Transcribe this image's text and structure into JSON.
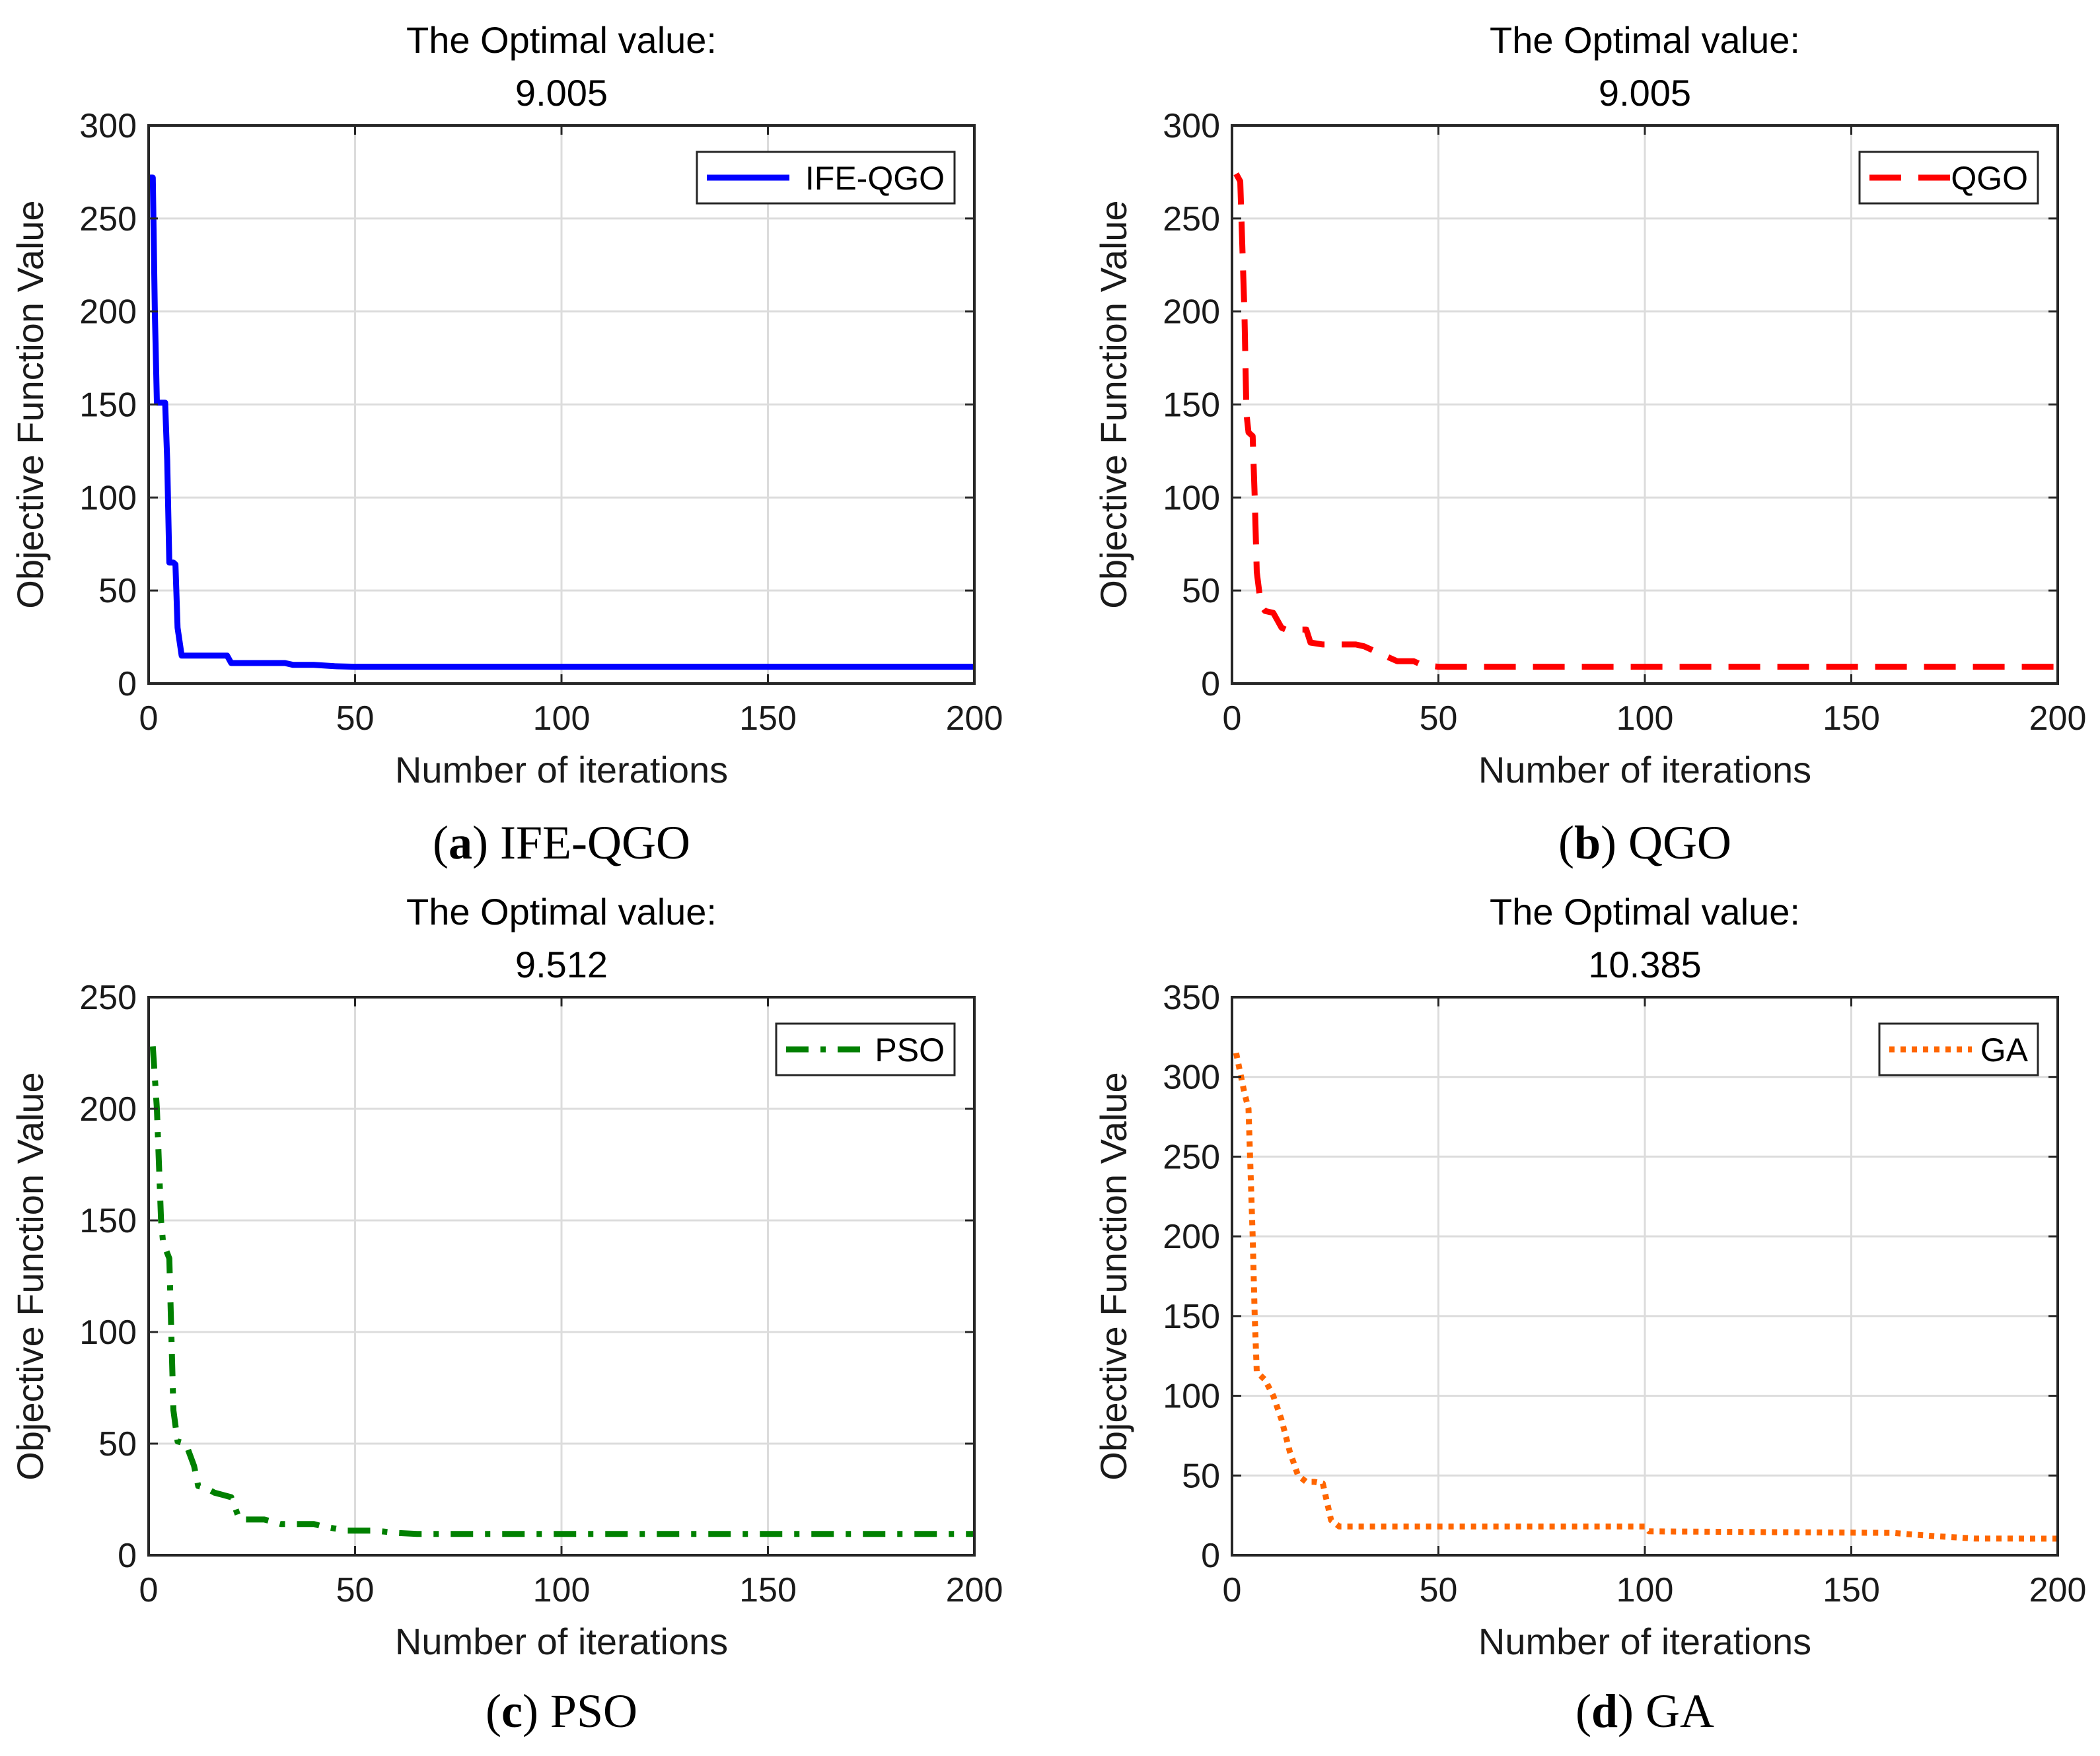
{
  "chart_data": [
    {
      "id": "a",
      "type": "line",
      "title_line1": "The Optimal value:",
      "title_line2": "9.005",
      "xlabel": "Number of iterations",
      "ylabel": "Objective Function Value",
      "xlim": [
        0,
        200
      ],
      "ylim": [
        0,
        300
      ],
      "xticks": [
        0,
        50,
        100,
        150,
        200
      ],
      "yticks": [
        0,
        50,
        100,
        150,
        200,
        250,
        300
      ],
      "grid": true,
      "legend_position": "top-right",
      "caption_letter": "a",
      "caption_name": "IFE-QGO",
      "series": [
        {
          "name": "IFE-QGO",
          "color": "#0000ff",
          "linestyle": "solid",
          "x": [
            0,
            1,
            1.5,
            2,
            4,
            4.5,
            5,
            6,
            6.5,
            7,
            8,
            19,
            20,
            33,
            35,
            40,
            45,
            50,
            200
          ],
          "y": [
            272,
            272,
            200,
            151,
            151,
            120,
            65,
            65,
            64,
            30,
            15,
            15,
            11,
            11,
            10,
            10,
            9.3,
            9.005,
            9.005
          ]
        }
      ]
    },
    {
      "id": "b",
      "type": "line",
      "title_line1": "The Optimal value:",
      "title_line2": "9.005",
      "xlabel": "Number of iterations",
      "ylabel": "Objective Function Value",
      "xlim": [
        0,
        200
      ],
      "ylim": [
        0,
        300
      ],
      "xticks": [
        0,
        50,
        100,
        150,
        200
      ],
      "yticks": [
        0,
        50,
        100,
        150,
        200,
        250,
        300
      ],
      "grid": true,
      "legend_position": "top-right",
      "caption_letter": "b",
      "caption_name": "QGO",
      "series": [
        {
          "name": "QGO",
          "color": "#ff0000",
          "linestyle": "dashed",
          "x": [
            1,
            2,
            3,
            3.5,
            4,
            5,
            5.5,
            6,
            7,
            8,
            10,
            12,
            13,
            18,
            19,
            22,
            30,
            32,
            38,
            40,
            44,
            46,
            50,
            200
          ],
          "y": [
            274,
            270,
            200,
            145,
            135,
            133,
            100,
            60,
            42,
            39,
            38,
            30,
            29,
            29,
            22,
            21,
            21,
            20,
            14,
            12,
            12,
            10,
            9.005,
            9.005
          ]
        }
      ]
    },
    {
      "id": "c",
      "type": "line",
      "title_line1": "The Optimal value:",
      "title_line2": "9.512",
      "xlabel": "Number of iterations",
      "ylabel": "Objective Function Value",
      "xlim": [
        0,
        200
      ],
      "ylim": [
        0,
        250
      ],
      "xticks": [
        0,
        50,
        100,
        150,
        200
      ],
      "yticks": [
        0,
        50,
        100,
        150,
        200,
        250
      ],
      "grid": true,
      "legend_position": "top-right",
      "caption_letter": "c",
      "caption_name": "PSO",
      "series": [
        {
          "name": "PSO",
          "color": "#008000",
          "linestyle": "dashdot",
          "x": [
            1,
            2,
            3,
            3.5,
            5,
            6,
            7,
            9,
            11,
            12,
            14,
            16,
            18,
            20,
            21,
            22,
            28,
            30,
            32,
            40,
            42,
            45,
            48,
            55,
            60,
            65,
            200
          ],
          "y": [
            228,
            200,
            150,
            140,
            133,
            65,
            51,
            50,
            40,
            31,
            30,
            28,
            27,
            26,
            21,
            16,
            16,
            15,
            14,
            14,
            13,
            12,
            11,
            11,
            10,
            9.512,
            9.512
          ]
        }
      ]
    },
    {
      "id": "d",
      "type": "line",
      "title_line1": "The Optimal value:",
      "title_line2": "10.385",
      "xlabel": "Number of iterations",
      "ylabel": "Objective Function Value",
      "xlim": [
        0,
        200
      ],
      "ylim": [
        0,
        350
      ],
      "xticks": [
        0,
        50,
        100,
        150,
        200
      ],
      "yticks": [
        0,
        50,
        100,
        150,
        200,
        250,
        300,
        350
      ],
      "grid": true,
      "legend_position": "top-right",
      "caption_letter": "d",
      "caption_name": "GA",
      "series": [
        {
          "name": "GA",
          "color": "#ff6600",
          "linestyle": "dotted",
          "x": [
            1,
            3,
            4,
            5,
            5.5,
            6,
            8,
            10,
            12,
            14,
            16,
            18,
            20,
            22,
            24,
            26,
            100,
            101,
            160,
            170,
            180,
            200
          ],
          "y": [
            315,
            290,
            280,
            200,
            150,
            115,
            110,
            100,
            85,
            65,
            50,
            46,
            46,
            45,
            22,
            18,
            18,
            15,
            14,
            12,
            10.5,
            10.385
          ]
        }
      ]
    }
  ]
}
